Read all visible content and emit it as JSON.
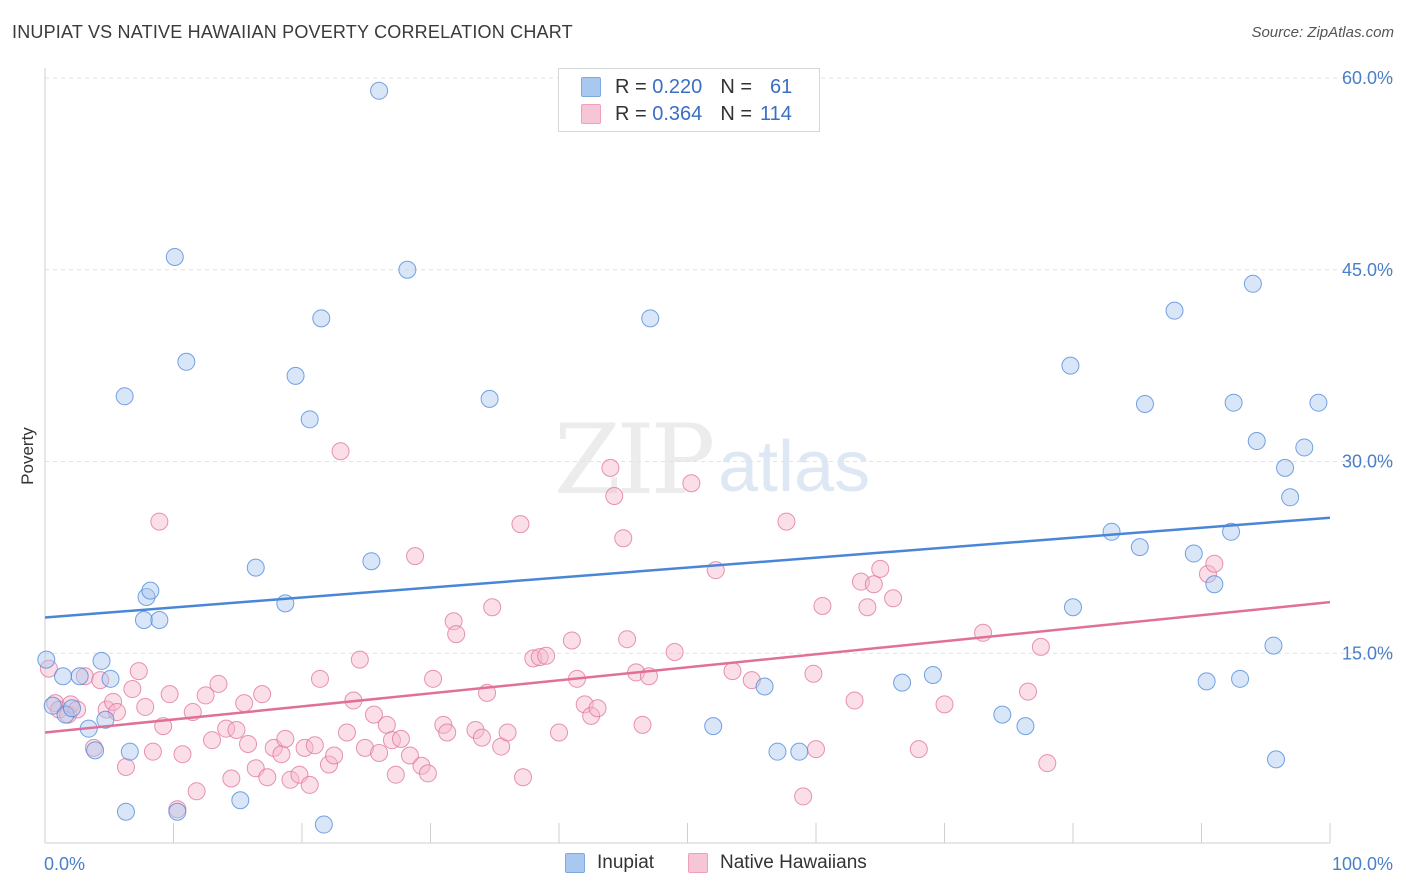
{
  "header": {
    "title": "INUPIAT VS NATIVE HAWAIIAN POVERTY CORRELATION CHART",
    "source": "Source: ZipAtlas.com"
  },
  "watermark": {
    "zip": "ZIP",
    "atlas": "atlas"
  },
  "legend_top": {
    "rows": [
      {
        "r_label": "R =",
        "r_value": "0.220",
        "n_label": "N =",
        "n_value": "61",
        "color": "#a9c8f0"
      },
      {
        "r_label": "R =",
        "r_value": "0.364",
        "n_label": "N =",
        "n_value": "114",
        "color": "#f6b8cc"
      }
    ]
  },
  "legend_bottom": {
    "items": [
      {
        "label": "Inupiat",
        "color": "#a9c8f0"
      },
      {
        "label": "Native Hawaiians",
        "color": "#f6b8cc"
      }
    ]
  },
  "chart_data": {
    "type": "scatter",
    "title": "INUPIAT VS NATIVE HAWAIIAN POVERTY CORRELATION CHART",
    "xlabel": "",
    "ylabel": "Poverty",
    "xlim": [
      0,
      100
    ],
    "ylim": [
      0,
      60
    ],
    "x_tick_labels": [
      "0.0%",
      "100.0%"
    ],
    "y_ticks": [
      15,
      30,
      45,
      60
    ],
    "y_tick_labels": [
      "15.0%",
      "30.0%",
      "45.0%",
      "60.0%"
    ],
    "series": [
      {
        "name": "Inupiat",
        "color": "#4a86d8",
        "fill": "#a9c8f0",
        "trend": {
          "x": [
            0,
            100
          ],
          "y": [
            17.8,
            25.6
          ]
        },
        "points": [
          [
            0.1,
            14.5
          ],
          [
            0.6,
            10.9
          ],
          [
            1.4,
            13.2
          ],
          [
            1.6,
            10.2
          ],
          [
            2.1,
            10.7
          ],
          [
            2.7,
            13.2
          ],
          [
            3.4,
            9.1
          ],
          [
            3.9,
            7.4
          ],
          [
            4.4,
            14.4
          ],
          [
            4.7,
            9.8
          ],
          [
            5.1,
            13.0
          ],
          [
            6.2,
            35.1
          ],
          [
            6.3,
            2.6
          ],
          [
            6.6,
            7.3
          ],
          [
            7.7,
            17.6
          ],
          [
            7.9,
            19.4
          ],
          [
            8.2,
            19.9
          ],
          [
            8.9,
            17.6
          ],
          [
            10.1,
            46.0
          ],
          [
            10.3,
            2.6
          ],
          [
            11.0,
            37.8
          ],
          [
            15.2,
            3.5
          ],
          [
            16.4,
            21.7
          ],
          [
            18.7,
            18.9
          ],
          [
            19.5,
            36.7
          ],
          [
            20.6,
            33.3
          ],
          [
            21.5,
            41.2
          ],
          [
            21.7,
            1.6
          ],
          [
            25.4,
            22.2
          ],
          [
            26.0,
            59.0
          ],
          [
            28.2,
            45.0
          ],
          [
            34.6,
            34.9
          ],
          [
            47.1,
            41.2
          ],
          [
            52.0,
            9.3
          ],
          [
            56.0,
            12.4
          ],
          [
            57.0,
            7.3
          ],
          [
            58.7,
            7.3
          ],
          [
            66.7,
            12.7
          ],
          [
            69.1,
            13.3
          ],
          [
            74.5,
            10.2
          ],
          [
            76.3,
            9.3
          ],
          [
            79.8,
            37.5
          ],
          [
            80.0,
            18.6
          ],
          [
            83.0,
            24.5
          ],
          [
            85.2,
            23.3
          ],
          [
            85.6,
            34.5
          ],
          [
            87.9,
            41.8
          ],
          [
            89.4,
            22.8
          ],
          [
            90.4,
            12.8
          ],
          [
            91.0,
            20.4
          ],
          [
            92.3,
            24.5
          ],
          [
            92.5,
            34.6
          ],
          [
            93.0,
            13.0
          ],
          [
            94.0,
            43.9
          ],
          [
            94.3,
            31.6
          ],
          [
            95.6,
            15.6
          ],
          [
            95.8,
            6.7
          ],
          [
            96.5,
            29.5
          ],
          [
            96.9,
            27.2
          ],
          [
            98.0,
            31.1
          ],
          [
            99.1,
            34.6
          ]
        ]
      },
      {
        "name": "Native Hawaiians",
        "color": "#e0709a",
        "fill": "#f6b8cc",
        "trend": {
          "x": [
            0,
            100
          ],
          "y": [
            8.8,
            19.0
          ]
        },
        "points": [
          [
            0.3,
            13.8
          ],
          [
            0.8,
            11.1
          ],
          [
            1.1,
            10.6
          ],
          [
            1.8,
            10.2
          ],
          [
            2.0,
            11.0
          ],
          [
            2.5,
            10.6
          ],
          [
            3.1,
            13.2
          ],
          [
            3.8,
            7.6
          ],
          [
            4.3,
            12.9
          ],
          [
            4.8,
            10.6
          ],
          [
            5.3,
            11.2
          ],
          [
            5.6,
            10.4
          ],
          [
            6.3,
            6.1
          ],
          [
            6.8,
            12.2
          ],
          [
            7.3,
            13.6
          ],
          [
            7.8,
            10.8
          ],
          [
            8.4,
            7.3
          ],
          [
            8.9,
            25.3
          ],
          [
            9.2,
            9.3
          ],
          [
            9.7,
            11.8
          ],
          [
            10.3,
            2.8
          ],
          [
            10.7,
            7.1
          ],
          [
            11.5,
            10.4
          ],
          [
            11.8,
            4.2
          ],
          [
            12.5,
            11.7
          ],
          [
            13.0,
            8.2
          ],
          [
            13.5,
            12.6
          ],
          [
            14.1,
            9.1
          ],
          [
            14.5,
            5.2
          ],
          [
            14.9,
            9.0
          ],
          [
            15.5,
            11.1
          ],
          [
            15.8,
            7.9
          ],
          [
            16.4,
            6.0
          ],
          [
            16.9,
            11.8
          ],
          [
            17.3,
            5.3
          ],
          [
            17.8,
            7.6
          ],
          [
            18.4,
            7.1
          ],
          [
            18.7,
            8.3
          ],
          [
            19.1,
            5.1
          ],
          [
            19.8,
            5.5
          ],
          [
            20.2,
            7.6
          ],
          [
            20.6,
            4.7
          ],
          [
            21.0,
            7.8
          ],
          [
            21.4,
            13.0
          ],
          [
            22.1,
            6.3
          ],
          [
            22.5,
            7.0
          ],
          [
            23.0,
            30.8
          ],
          [
            23.5,
            8.8
          ],
          [
            24.0,
            11.3
          ],
          [
            24.5,
            14.5
          ],
          [
            24.9,
            7.6
          ],
          [
            25.6,
            10.2
          ],
          [
            26.0,
            7.2
          ],
          [
            26.6,
            9.4
          ],
          [
            27.0,
            8.2
          ],
          [
            27.3,
            5.5
          ],
          [
            27.7,
            8.3
          ],
          [
            28.4,
            7.0
          ],
          [
            28.8,
            22.6
          ],
          [
            29.3,
            6.2
          ],
          [
            29.8,
            5.6
          ],
          [
            30.2,
            13.0
          ],
          [
            31.0,
            9.4
          ],
          [
            31.3,
            8.8
          ],
          [
            31.8,
            17.5
          ],
          [
            32.0,
            16.5
          ],
          [
            33.5,
            9.0
          ],
          [
            34.0,
            8.4
          ],
          [
            34.4,
            11.9
          ],
          [
            34.8,
            18.6
          ],
          [
            35.5,
            7.7
          ],
          [
            36.0,
            8.8
          ],
          [
            37.0,
            25.1
          ],
          [
            37.2,
            5.3
          ],
          [
            38.0,
            14.6
          ],
          [
            38.5,
            14.7
          ],
          [
            39.0,
            14.8
          ],
          [
            40.0,
            8.8
          ],
          [
            41.0,
            16.0
          ],
          [
            41.4,
            13.0
          ],
          [
            42.0,
            11.0
          ],
          [
            42.5,
            10.1
          ],
          [
            43.0,
            10.7
          ],
          [
            44.0,
            29.5
          ],
          [
            44.3,
            27.3
          ],
          [
            45.0,
            24.0
          ],
          [
            45.3,
            16.1
          ],
          [
            46.0,
            13.5
          ],
          [
            46.5,
            9.4
          ],
          [
            47.0,
            13.2
          ],
          [
            49.0,
            15.1
          ],
          [
            50.3,
            28.3
          ],
          [
            52.2,
            21.5
          ],
          [
            53.5,
            13.6
          ],
          [
            55.0,
            12.9
          ],
          [
            57.7,
            25.3
          ],
          [
            59.0,
            3.8
          ],
          [
            59.8,
            13.4
          ],
          [
            60.0,
            7.5
          ],
          [
            60.5,
            18.7
          ],
          [
            63.0,
            11.3
          ],
          [
            63.5,
            20.6
          ],
          [
            64.0,
            18.6
          ],
          [
            64.5,
            20.4
          ],
          [
            65.0,
            21.6
          ],
          [
            66.0,
            19.3
          ],
          [
            68.0,
            7.5
          ],
          [
            70.0,
            11.0
          ],
          [
            73.0,
            16.6
          ],
          [
            76.5,
            12.0
          ],
          [
            77.5,
            15.5
          ],
          [
            78.0,
            6.4
          ],
          [
            90.5,
            21.2
          ],
          [
            91.0,
            22.0
          ]
        ]
      }
    ]
  }
}
